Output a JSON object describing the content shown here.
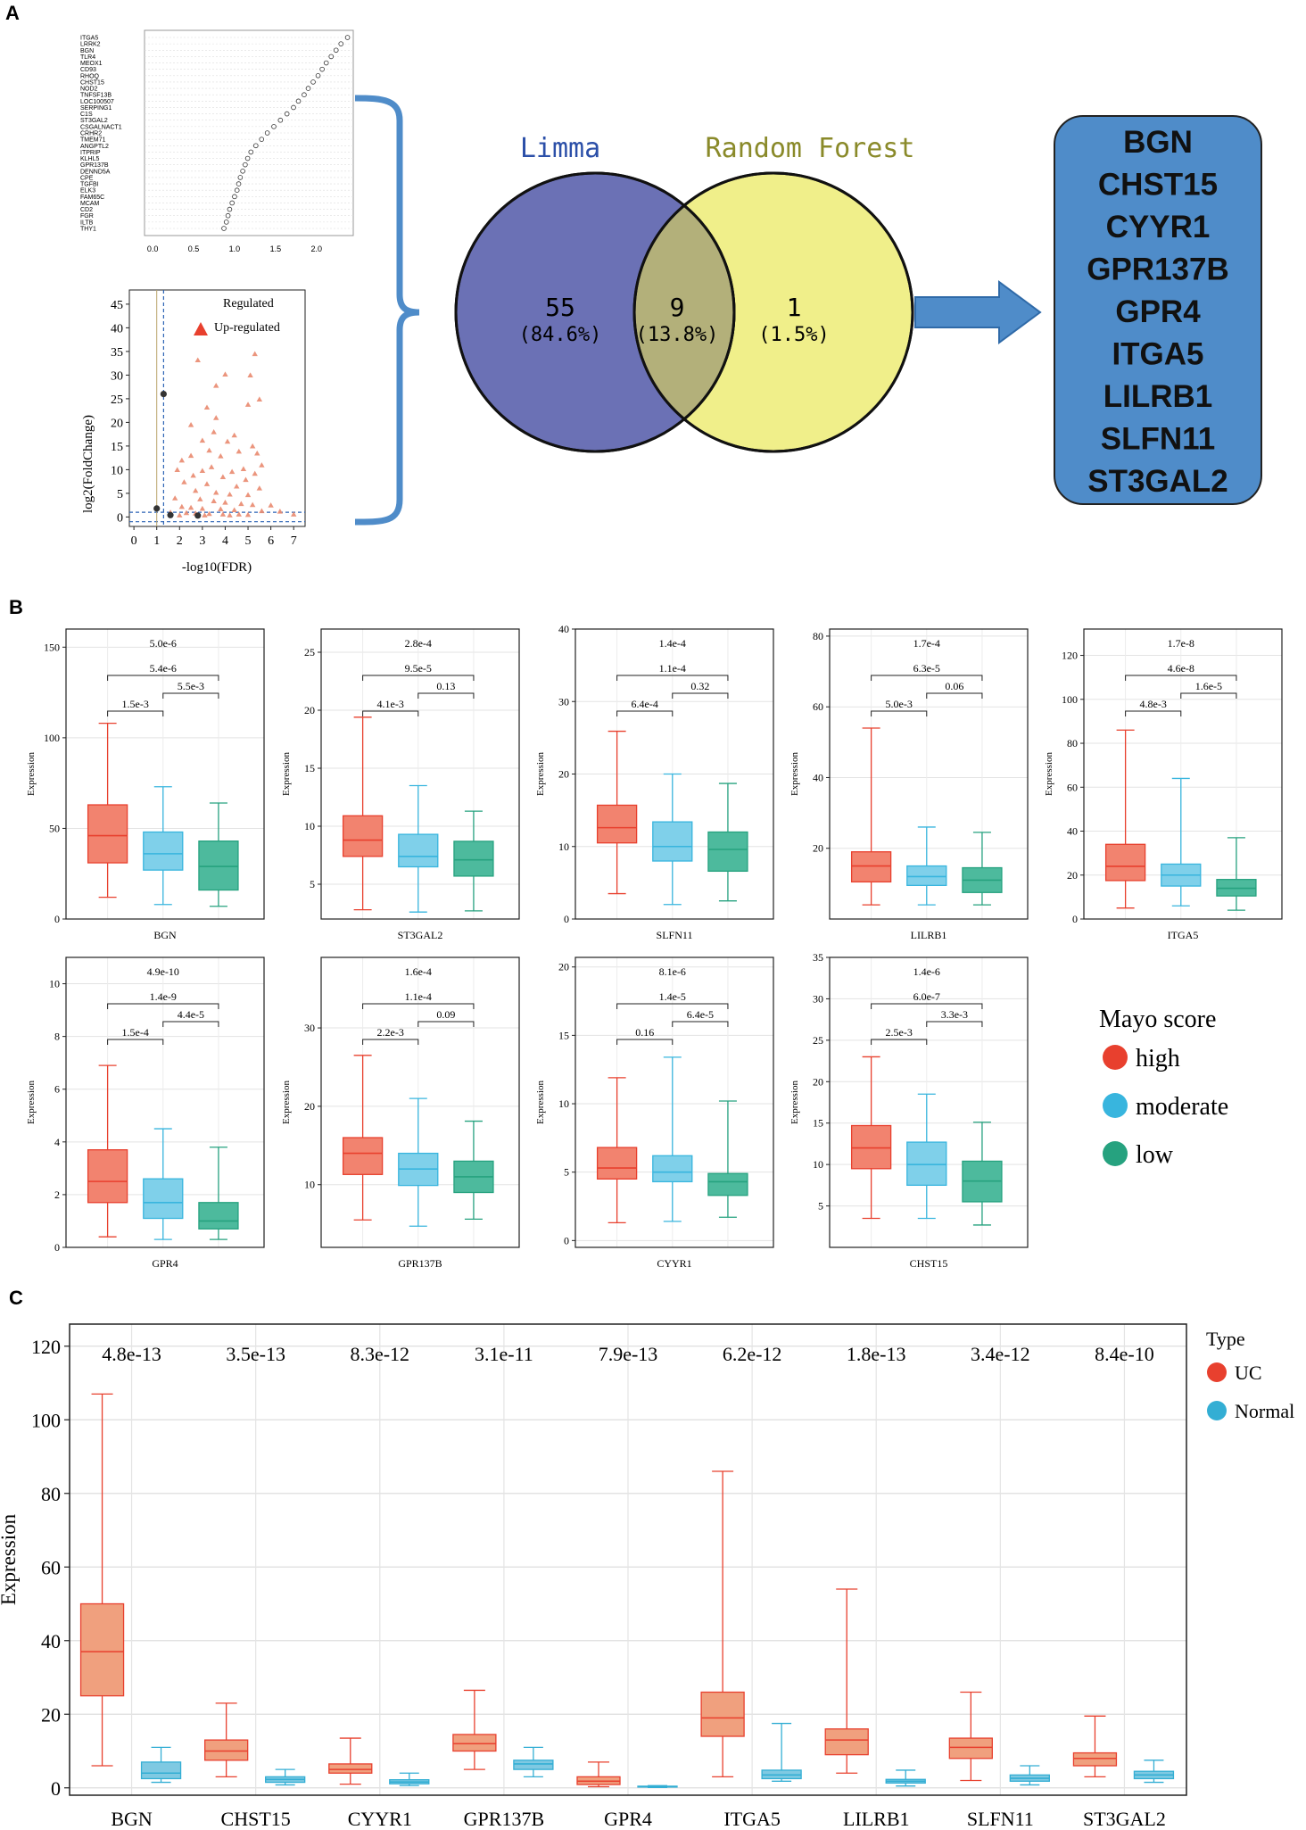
{
  "panels": {
    "a": "A",
    "b": "B",
    "c": "C"
  },
  "colors": {
    "high": "#f2836f",
    "high_stroke": "#e8402e",
    "moderate": "#7fd0ea",
    "moderate_stroke": "#38b5de",
    "low": "#4dba9d",
    "low_stroke": "#26a27f",
    "uc": "#f0a07e",
    "uc_stroke": "#e8402e",
    "normal": "#7fc9e2",
    "normal_stroke": "#33aed4",
    "limma_fill": "#6b71b5",
    "rf_fill": "#f0ef8a",
    "overlap_fill": "#b3b07a",
    "gene_box": "#4f8cc9",
    "arrow": "#4f8cc9",
    "brace": "#4f8cc9",
    "volcano_point": "#e98a6f",
    "limma_text": "#2b4fa8",
    "rf_text": "#8a8a2a"
  },
  "dotplot": {
    "genes": [
      "ITGA5",
      "LRRK2",
      "BGN",
      "TLR4",
      "MEOX1",
      "CD93",
      "RHOQ",
      "CHST15",
      "NOD2",
      "TNFSF13B",
      "LOC100507",
      "SERPING1",
      "C1S",
      "ST3GAL2",
      "CSGALNACT1",
      "CRHR2",
      "TMEM71",
      "ANGPTL2",
      "ITPRIP",
      "KLHL5",
      "GPR137B",
      "DENND5A",
      "CPE",
      "TGFBI",
      "ELK3",
      "FAM65C",
      "MCAM",
      "CD2",
      "FGR",
      "ILTB",
      "THY1"
    ],
    "values": [
      2.38,
      2.3,
      2.24,
      2.18,
      2.12,
      2.07,
      2.02,
      1.96,
      1.9,
      1.85,
      1.78,
      1.72,
      1.64,
      1.56,
      1.48,
      1.4,
      1.33,
      1.26,
      1.2,
      1.16,
      1.13,
      1.1,
      1.07,
      1.05,
      1.03,
      1.0,
      0.97,
      0.94,
      0.92,
      0.9,
      0.87
    ],
    "xticks": [
      "0.0",
      "0.5",
      "1.0",
      "1.5",
      "2.0"
    ],
    "xlim": [
      -0.1,
      2.45
    ]
  },
  "volcano": {
    "ylabel": "log2(FoldChange)",
    "xlabel": "-log10(FDR)",
    "legend_title": "Regulated",
    "legend_item": "Up-regulated",
    "xticks": [
      "0",
      "1",
      "2",
      "3",
      "4",
      "5",
      "6",
      "7"
    ],
    "yticks": [
      "0",
      "5",
      "10",
      "15",
      "20",
      "25",
      "30",
      "35",
      "40",
      "45"
    ],
    "xlim": [
      -0.2,
      7.5
    ],
    "ylim": [
      -2,
      48
    ],
    "up_points": [
      [
        5.3,
        34.5
      ],
      [
        2.8,
        33.2
      ],
      [
        4.0,
        30.2
      ],
      [
        5.1,
        30.0
      ],
      [
        3.6,
        27.8
      ],
      [
        5.5,
        24.9
      ],
      [
        5.0,
        23.8
      ],
      [
        3.2,
        23.2
      ],
      [
        3.6,
        21.0
      ],
      [
        2.5,
        19.5
      ],
      [
        3.5,
        18.0
      ],
      [
        4.4,
        17.3
      ],
      [
        3.0,
        16.2
      ],
      [
        4.1,
        16.0
      ],
      [
        5.2,
        15.0
      ],
      [
        3.3,
        14.1
      ],
      [
        4.6,
        13.9
      ],
      [
        5.4,
        13.5
      ],
      [
        2.5,
        13.0
      ],
      [
        3.8,
        12.9
      ],
      [
        2.1,
        12.0
      ],
      [
        5.6,
        11.0
      ],
      [
        3.4,
        10.6
      ],
      [
        4.8,
        10.2
      ],
      [
        1.9,
        10.0
      ],
      [
        3.0,
        9.8
      ],
      [
        4.3,
        9.6
      ],
      [
        5.3,
        9.2
      ],
      [
        2.6,
        8.8
      ],
      [
        3.9,
        8.5
      ],
      [
        4.9,
        7.9
      ],
      [
        2.2,
        7.4
      ],
      [
        3.2,
        7.0
      ],
      [
        4.5,
        6.5
      ],
      [
        5.5,
        6.1
      ],
      [
        2.7,
        5.6
      ],
      [
        3.6,
        5.2
      ],
      [
        4.2,
        4.8
      ],
      [
        5.0,
        4.7
      ],
      [
        1.8,
        4.0
      ],
      [
        2.9,
        3.8
      ],
      [
        3.5,
        3.4
      ],
      [
        4.0,
        3.1
      ],
      [
        4.7,
        2.8
      ],
      [
        5.2,
        2.6
      ],
      [
        6.0,
        2.5
      ],
      [
        2.1,
        2.2
      ],
      [
        2.5,
        2.0
      ],
      [
        3.0,
        1.8
      ],
      [
        3.8,
        1.7
      ],
      [
        4.4,
        1.5
      ],
      [
        5.6,
        1.3
      ],
      [
        6.4,
        1.2
      ],
      [
        1.6,
        1.0
      ],
      [
        2.3,
        0.9
      ],
      [
        2.7,
        0.8
      ],
      [
        3.3,
        0.7
      ],
      [
        3.9,
        0.6
      ],
      [
        4.6,
        0.6
      ],
      [
        5.0,
        0.5
      ],
      [
        7.0,
        0.6
      ],
      [
        2.0,
        0.4
      ],
      [
        3.1,
        0.4
      ],
      [
        4.2,
        0.4
      ]
    ],
    "dark_points": [
      [
        1.3,
        26.0
      ],
      [
        1.0,
        1.8
      ],
      [
        1.6,
        0.4
      ],
      [
        2.8,
        0.3
      ]
    ]
  },
  "venn": {
    "limma_label": "Limma",
    "rf_label": "Random Forest",
    "left_count": "55",
    "left_pct": "(84.6%)",
    "mid_count": "9",
    "mid_pct": "(13.8%)",
    "right_count": "1",
    "right_pct": "(1.5%)"
  },
  "gene_list": [
    "BGN",
    "CHST15",
    "CYYR1",
    "GPR137B",
    "GPR4",
    "ITGA5",
    "LILRB1",
    "SLFN11",
    "ST3GAL2"
  ],
  "chart_data": [
    {
      "type": "box",
      "panel": "B",
      "ylabel": "Expression",
      "groups": [
        "high",
        "moderate",
        "low"
      ],
      "legend_title": "Mayo score",
      "legend_items": [
        "high",
        "moderate",
        "low"
      ],
      "subplots": [
        {
          "gene": "BGN",
          "ylim": [
            0,
            160
          ],
          "yticks": [
            0,
            50,
            100,
            150
          ],
          "boxes": [
            [
              12,
              31,
              46,
              63,
              108
            ],
            [
              8,
              27,
              36,
              48,
              73
            ],
            [
              7,
              16,
              29,
              43,
              64
            ]
          ],
          "pvals": [
            "1.5e-3",
            "5.5e-3",
            "5.4e-6",
            "5.0e-6"
          ]
        },
        {
          "gene": "ST3GAL2",
          "ylim": [
            2,
            27
          ],
          "yticks": [
            5,
            10,
            15,
            20,
            25
          ],
          "boxes": [
            [
              2.8,
              7.4,
              8.8,
              10.9,
              19.4
            ],
            [
              2.6,
              6.5,
              7.4,
              9.3,
              13.5
            ],
            [
              2.7,
              5.7,
              7.1,
              8.7,
              11.3
            ]
          ],
          "pvals": [
            "4.1e-3",
            "0.13",
            "9.5e-5",
            "2.8e-4"
          ]
        },
        {
          "gene": "SLFN11",
          "ylim": [
            0,
            40
          ],
          "yticks": [
            0,
            10,
            20,
            30,
            40
          ],
          "boxes": [
            [
              3.5,
              10.5,
              12.6,
              15.7,
              25.9
            ],
            [
              2.0,
              8.0,
              10.0,
              13.4,
              20.0
            ],
            [
              2.5,
              6.6,
              9.6,
              12.0,
              18.7
            ]
          ],
          "pvals": [
            "6.4e-4",
            "0.32",
            "1.1e-4",
            "1.4e-4"
          ]
        },
        {
          "gene": "LILRB1",
          "ylim": [
            0,
            82
          ],
          "yticks": [
            20,
            40,
            60,
            80
          ],
          "boxes": [
            [
              4,
              10.5,
              15,
              19,
              54
            ],
            [
              4,
              9.5,
              12,
              15,
              26
            ],
            [
              4,
              7.5,
              11,
              14.5,
              24.5
            ]
          ],
          "pvals": [
            "5.0e-3",
            "0.06",
            "6.3e-5",
            "1.7e-4"
          ]
        },
        {
          "gene": "ITGA5",
          "ylim": [
            0,
            132
          ],
          "yticks": [
            0,
            20,
            40,
            60,
            80,
            100,
            120
          ],
          "boxes": [
            [
              5,
              17.5,
              24,
              34,
              86
            ],
            [
              6,
              15,
              20,
              25,
              64
            ],
            [
              4,
              10.5,
              14,
              18,
              37
            ]
          ],
          "pvals": [
            "4.8e-3",
            "1.6e-5",
            "4.6e-8",
            "1.7e-8"
          ]
        },
        {
          "gene": "GPR4",
          "ylim": [
            0,
            11
          ],
          "yticks": [
            0,
            2,
            4,
            6,
            8,
            10
          ],
          "boxes": [
            [
              0.4,
              1.7,
              2.5,
              3.7,
              6.9
            ],
            [
              0.3,
              1.1,
              1.7,
              2.6,
              4.5
            ],
            [
              0.3,
              0.7,
              1.0,
              1.7,
              3.8
            ]
          ],
          "pvals": [
            "1.5e-4",
            "4.4e-5",
            "1.4e-9",
            "4.9e-10"
          ]
        },
        {
          "gene": "GPR137B",
          "ylim": [
            2,
            39
          ],
          "yticks": [
            10,
            20,
            30
          ],
          "boxes": [
            [
              5.5,
              11.3,
              14.0,
              16.0,
              26.5
            ],
            [
              4.7,
              9.9,
              12.0,
              14.0,
              21.0
            ],
            [
              5.6,
              9.0,
              11.0,
              13.0,
              18.1
            ]
          ],
          "pvals": [
            "2.2e-3",
            "0.09",
            "1.1e-4",
            "1.6e-4"
          ]
        },
        {
          "gene": "CYYR1",
          "ylim": [
            -0.5,
            20.7
          ],
          "yticks": [
            0,
            5,
            10,
            15,
            20
          ],
          "boxes": [
            [
              1.3,
              4.5,
              5.3,
              6.8,
              11.9
            ],
            [
              1.4,
              4.3,
              5.0,
              6.2,
              13.4
            ],
            [
              1.7,
              3.3,
              4.3,
              4.9,
              10.2
            ]
          ],
          "pvals": [
            "0.16",
            "6.4e-5",
            "1.4e-5",
            "8.1e-6"
          ]
        },
        {
          "gene": "CHST15",
          "ylim": [
            0,
            35
          ],
          "yticks": [
            5,
            10,
            15,
            20,
            25,
            30,
            35
          ],
          "boxes": [
            [
              3.5,
              9.5,
              12.0,
              14.7,
              23.0
            ],
            [
              3.5,
              7.5,
              10.0,
              12.7,
              18.5
            ],
            [
              2.7,
              5.5,
              8.0,
              10.4,
              15.1
            ]
          ],
          "pvals": [
            "2.5e-3",
            "3.3e-3",
            "6.0e-7",
            "1.4e-6"
          ]
        }
      ]
    },
    {
      "type": "box",
      "panel": "C",
      "ylabel": "Expression",
      "ylim": [
        -2,
        126
      ],
      "yticks": [
        0,
        20,
        40,
        60,
        80,
        100,
        120
      ],
      "legend_title": "Type",
      "legend_items": [
        "UC",
        "Normal"
      ],
      "categories": [
        "BGN",
        "CHST15",
        "CYYR1",
        "GPR137B",
        "GPR4",
        "ITGA5",
        "LILRB1",
        "SLFN11",
        "ST3GAL2"
      ],
      "pvals": [
        "4.8e-13",
        "3.5e-13",
        "8.3e-12",
        "3.1e-11",
        "7.9e-13",
        "6.2e-12",
        "1.8e-13",
        "3.4e-12",
        "8.4e-10"
      ],
      "uc": [
        [
          6,
          25,
          37,
          50,
          107
        ],
        [
          3,
          7.5,
          10,
          13,
          23
        ],
        [
          1,
          4,
          5,
          6.5,
          13.5
        ],
        [
          5,
          10,
          12,
          14.5,
          26.5
        ],
        [
          0.3,
          0.9,
          1.8,
          3,
          7
        ],
        [
          3,
          14,
          19,
          26,
          86
        ],
        [
          4,
          9,
          13,
          16,
          54
        ],
        [
          2,
          8,
          11,
          13.5,
          26
        ],
        [
          3,
          6,
          8,
          9.5,
          19.5
        ]
      ],
      "normal": [
        [
          1.5,
          2.5,
          4,
          7,
          11
        ],
        [
          0.8,
          1.5,
          2.3,
          3,
          5
        ],
        [
          0.6,
          1.1,
          1.6,
          2.2,
          4
        ],
        [
          3,
          5,
          6.5,
          7.5,
          11
        ],
        [
          0.1,
          0.25,
          0.35,
          0.45,
          0.6
        ],
        [
          1.8,
          2.5,
          3.5,
          4.8,
          17.5
        ],
        [
          0.5,
          1.3,
          1.8,
          2.3,
          4.8
        ],
        [
          0.8,
          1.8,
          2.6,
          3.5,
          6
        ],
        [
          1.5,
          2.5,
          3.5,
          4.5,
          7.5
        ]
      ]
    }
  ]
}
